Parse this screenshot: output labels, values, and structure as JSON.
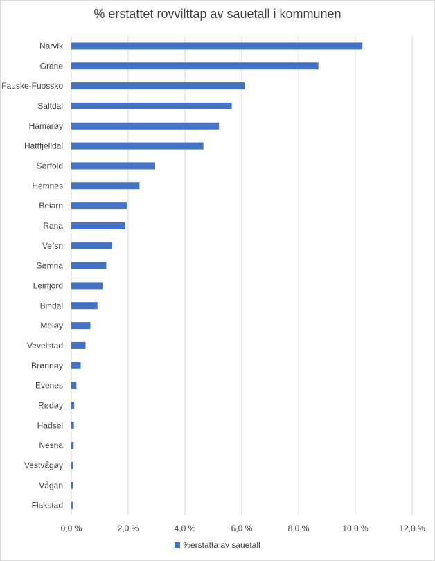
{
  "chart_data": {
    "type": "bar",
    "orientation": "horizontal",
    "title": "% erstattet rovvilttap av sauetall i kommunen",
    "xlabel": "",
    "ylabel": "",
    "xlim": [
      0,
      12
    ],
    "ticks": [
      0,
      2,
      4,
      6,
      8,
      10,
      12
    ],
    "tick_labels": [
      "0,0 %",
      "2,0 %",
      "4,0 %",
      "6,0 %",
      "8,0 %",
      "10,0 %",
      "12,0 %"
    ],
    "grid": true,
    "legend_position": "bottom",
    "color": "#4472c4",
    "categories": [
      "Narvik",
      "Grane",
      "Fauske-Fuossko",
      "Saltdal",
      "Hamarøy",
      "Hattfjelldal",
      "Sørfold",
      "Hemnes",
      "Beiarn",
      "Rana",
      "Vefsn",
      "Sømna",
      "Leirfjord",
      "Bindal",
      "Meløy",
      "Vevelstad",
      "Brønnøy",
      "Evenes",
      "Rødøy",
      "Hadsel",
      "Nesna",
      "Vestvågøy",
      "Vågan",
      "Flakstad"
    ],
    "series": [
      {
        "name": "%erstatta av sauetall",
        "values": [
          10.25,
          8.7,
          6.1,
          5.65,
          5.2,
          4.65,
          2.95,
          2.4,
          1.95,
          1.9,
          1.43,
          1.23,
          1.1,
          0.92,
          0.67,
          0.5,
          0.33,
          0.18,
          0.1,
          0.09,
          0.08,
          0.07,
          0.06,
          0.05
        ]
      }
    ]
  }
}
